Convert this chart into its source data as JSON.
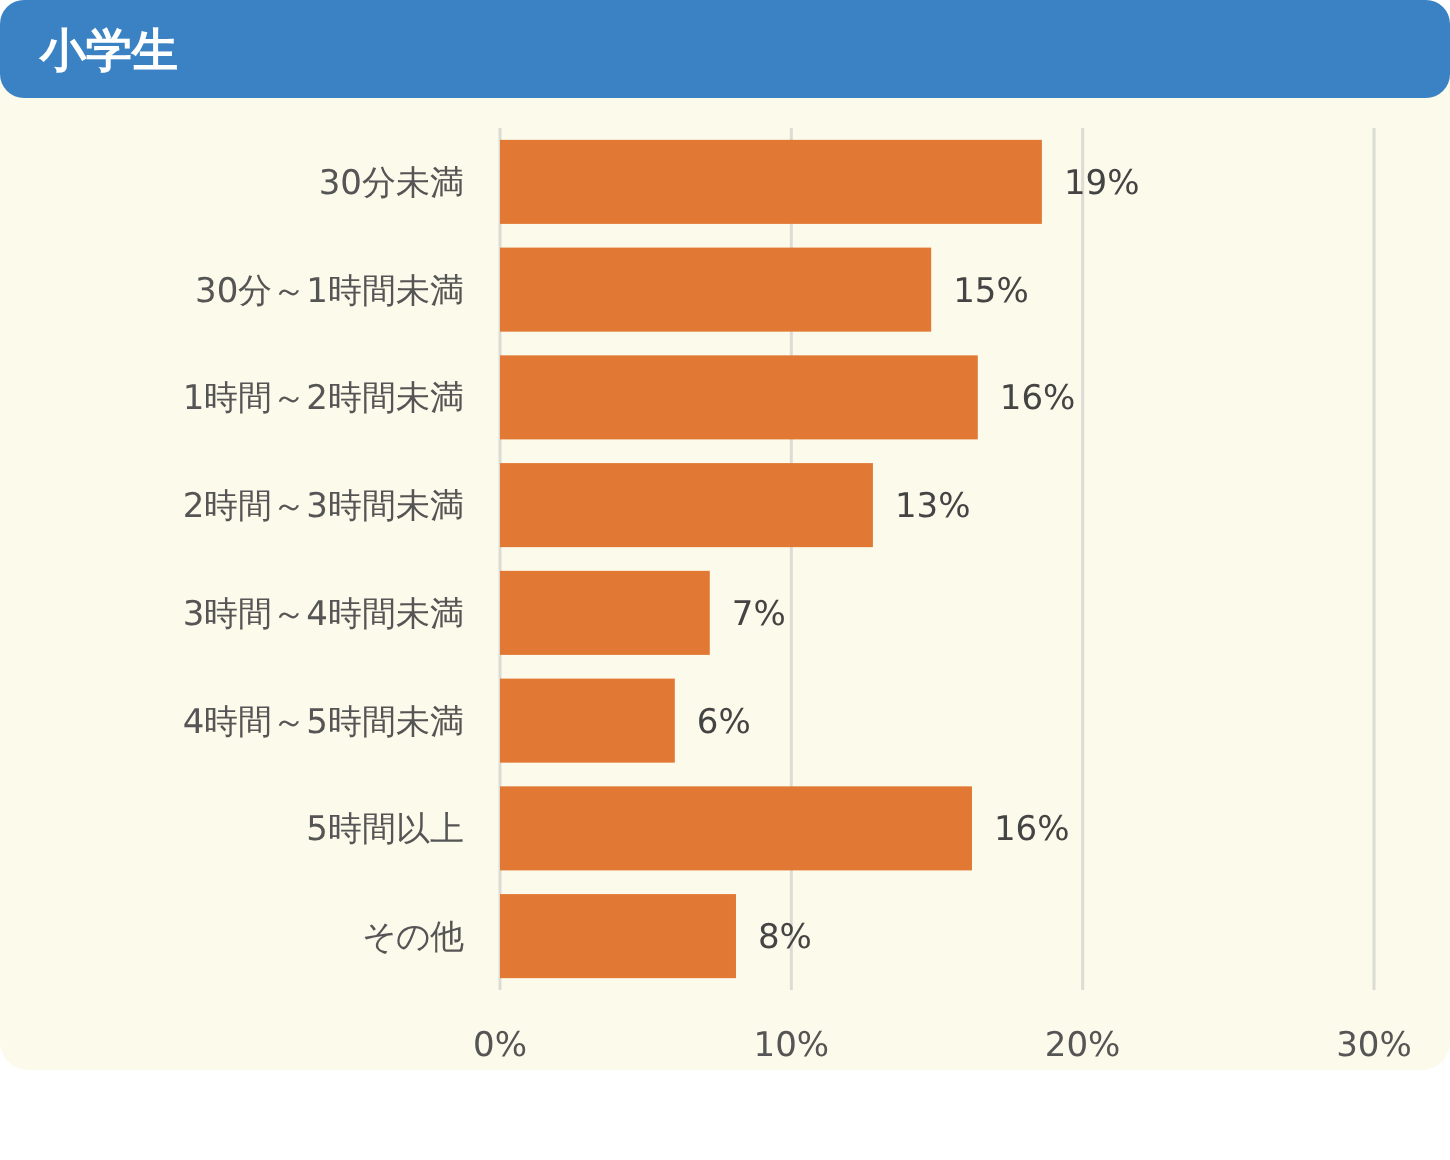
{
  "chart_data": {
    "type": "bar",
    "title": "小学生",
    "orientation": "horizontal",
    "categories": [
      "30分未満",
      "30分～1時間未満",
      "1時間～2時間未満",
      "2時間～3時間未満",
      "3時間～4時間未満",
      "4時間～5時間未満",
      "5時間以上",
      "その他"
    ],
    "values": [
      18.6,
      14.8,
      16.4,
      12.8,
      7.2,
      6.0,
      16.2,
      8.1
    ],
    "value_labels": [
      "19%",
      "15%",
      "16%",
      "13%",
      "7%",
      "6%",
      "16%",
      "8%"
    ],
    "color": "#e17833",
    "xlim": [
      0,
      30
    ],
    "xticks": [
      {
        "value": 0,
        "label": "0%"
      },
      {
        "value": 10,
        "label": "10%"
      },
      {
        "value": 20,
        "label": "20%"
      },
      {
        "value": 30,
        "label": "30%"
      }
    ],
    "grid": "x"
  }
}
